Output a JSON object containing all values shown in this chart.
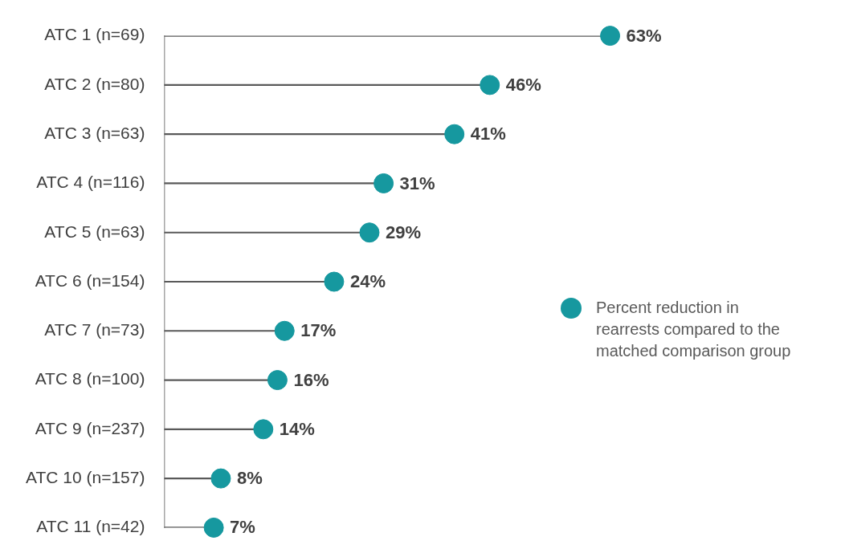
{
  "chart_data": {
    "type": "lollipop",
    "orientation": "horizontal",
    "categories": [
      "ATC 1 (n=69)",
      "ATC 2 (n=80)",
      "ATC 3 (n=63)",
      "ATC 4 (n=116)",
      "ATC 5 (n=63)",
      "ATC 6 (n=154)",
      "ATC 7 (n=73)",
      "ATC 8 (n=100)",
      "ATC 9 (n=237)",
      "ATC 10 (n=157)",
      "ATC 11 (n=42)"
    ],
    "series": [
      {
        "name": "Percent reduction in rearrests compared to the matched comparison group",
        "color": "#16989f",
        "values": [
          63,
          46,
          41,
          31,
          29,
          24,
          17,
          16,
          14,
          8,
          7
        ],
        "value_labels": [
          "63%",
          "46%",
          "41%",
          "31%",
          "29%",
          "24%",
          "17%",
          "16%",
          "14%",
          "8%",
          "7%"
        ]
      }
    ],
    "legend": "right",
    "marker": "circle"
  }
}
